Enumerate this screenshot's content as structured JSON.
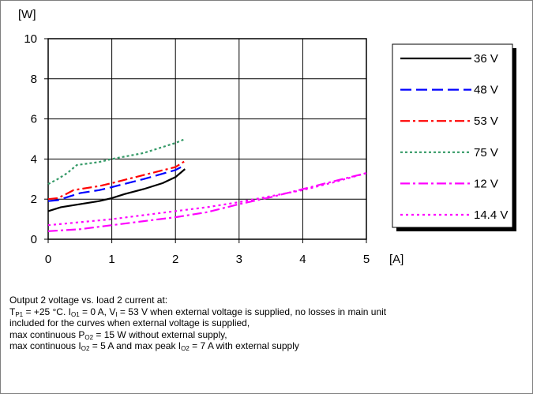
{
  "chart_data": {
    "type": "line",
    "ylabel": "[W]",
    "xlabel": "[A]",
    "xlim": [
      0,
      5
    ],
    "ylim": [
      0,
      10
    ],
    "x_ticks": [
      "0",
      "1",
      "2",
      "3",
      "4",
      "5"
    ],
    "y_ticks": [
      "0",
      "2",
      "4",
      "6",
      "8",
      "10"
    ],
    "grid": true,
    "legend_position": "right",
    "series": [
      {
        "name": "36 V",
        "color": "#000000",
        "dash": "solid",
        "points": [
          [
            0,
            1.4
          ],
          [
            0.2,
            1.6
          ],
          [
            0.5,
            1.75
          ],
          [
            0.8,
            1.9
          ],
          [
            1.0,
            2.05
          ],
          [
            1.2,
            2.25
          ],
          [
            1.5,
            2.5
          ],
          [
            1.8,
            2.8
          ],
          [
            2.0,
            3.1
          ],
          [
            2.15,
            3.5
          ]
        ]
      },
      {
        "name": "48 V",
        "color": "#0000ff",
        "dash": "long-dash",
        "points": [
          [
            0,
            1.9
          ],
          [
            0.15,
            1.95
          ],
          [
            0.3,
            2.1
          ],
          [
            0.5,
            2.3
          ],
          [
            0.8,
            2.45
          ],
          [
            1.0,
            2.6
          ],
          [
            1.5,
            3.0
          ],
          [
            2.0,
            3.45
          ],
          [
            2.15,
            3.7
          ]
        ]
      },
      {
        "name": "53 V",
        "color": "#ff0000",
        "dash": "dash-dot",
        "points": [
          [
            0,
            2.0
          ],
          [
            0.15,
            2.05
          ],
          [
            0.25,
            2.2
          ],
          [
            0.4,
            2.45
          ],
          [
            0.6,
            2.55
          ],
          [
            0.8,
            2.65
          ],
          [
            1.0,
            2.8
          ],
          [
            1.5,
            3.2
          ],
          [
            2.0,
            3.6
          ],
          [
            2.15,
            3.9
          ]
        ]
      },
      {
        "name": "75 V",
        "color": "#339966",
        "dash": "dotted",
        "points": [
          [
            0,
            2.75
          ],
          [
            0.15,
            3.0
          ],
          [
            0.3,
            3.3
          ],
          [
            0.45,
            3.7
          ],
          [
            0.8,
            3.85
          ],
          [
            1.0,
            4.0
          ],
          [
            1.5,
            4.3
          ],
          [
            2.0,
            4.8
          ],
          [
            2.15,
            5.0
          ]
        ]
      },
      {
        "name": "12 V",
        "color": "#ff00ff",
        "dash": "dash-dot",
        "points": [
          [
            0,
            0.4
          ],
          [
            0.5,
            0.5
          ],
          [
            1.0,
            0.7
          ],
          [
            1.5,
            0.9
          ],
          [
            2.0,
            1.1
          ],
          [
            2.5,
            1.35
          ],
          [
            3.0,
            1.75
          ],
          [
            3.5,
            2.1
          ],
          [
            4.0,
            2.5
          ],
          [
            4.5,
            2.9
          ],
          [
            5.0,
            3.3
          ]
        ]
      },
      {
        "name": "14.4 V",
        "color": "#ff00ff",
        "dash": "short-dash",
        "points": [
          [
            0,
            0.7
          ],
          [
            0.5,
            0.85
          ],
          [
            1.0,
            1.0
          ],
          [
            1.5,
            1.2
          ],
          [
            2.0,
            1.4
          ],
          [
            2.5,
            1.6
          ],
          [
            3.0,
            1.85
          ],
          [
            3.5,
            2.15
          ],
          [
            4.0,
            2.45
          ],
          [
            4.5,
            2.85
          ],
          [
            5.0,
            3.3
          ]
        ]
      }
    ]
  },
  "caption": {
    "line1": "Output 2 voltage vs. load 2 current at:",
    "line2": {
      "t": "T",
      "t_sub": "P1",
      "a": " = +25 °C. I",
      "io1_sub": "O1",
      "b": " = 0 A, V",
      "vi_sub": "I",
      "c": " = 53 V when external voltage is supplied, no losses in main unit"
    },
    "line3": "included for the curves when external voltage is supplied,",
    "line4": {
      "a": "max continuous P",
      "po2_sub": "O2",
      "b": " = 15 W without external supply,"
    },
    "line5": {
      "a": "max continuous I",
      "io2_sub": "O2",
      "b": " = 5 A and max peak I",
      "io2b_sub": "O2",
      "c": " = 7 A with external supply"
    }
  }
}
